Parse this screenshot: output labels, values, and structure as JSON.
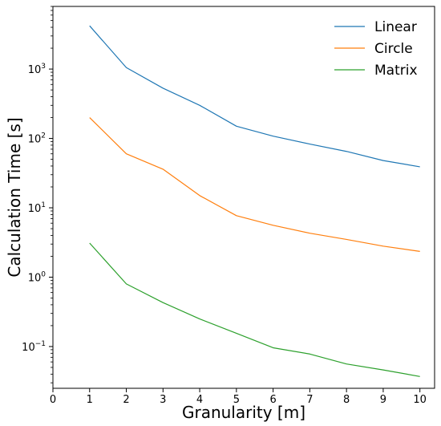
{
  "chart_data": {
    "type": "line",
    "xlabel": "Granularity [m]",
    "ylabel": "Calculation Time [s]",
    "y_scale": "log",
    "xlim": [
      0,
      10.4
    ],
    "ylim": [
      0.025,
      8000
    ],
    "x_ticks": [
      "0",
      "1",
      "2",
      "3",
      "4",
      "5",
      "6",
      "7",
      "8",
      "9",
      "10"
    ],
    "y_ticks": [
      {
        "value": 0.1,
        "base": "10",
        "exp": "−1"
      },
      {
        "value": 1,
        "base": "10",
        "exp": "0"
      },
      {
        "value": 10,
        "base": "10",
        "exp": "1"
      },
      {
        "value": 100,
        "base": "10",
        "exp": "2"
      },
      {
        "value": 1000,
        "base": "10",
        "exp": "3"
      }
    ],
    "grid": false,
    "legend_position": "top-right",
    "x": [
      1,
      2,
      3,
      4,
      5,
      6,
      7,
      8,
      9,
      10
    ],
    "series": [
      {
        "name": "Linear",
        "color": "#1f77b4",
        "values": [
          4200,
          1050,
          530,
          300,
          150,
          108,
          83,
          65,
          48,
          39
        ]
      },
      {
        "name": "Circle",
        "color": "#ff7f0e",
        "values": [
          200,
          60,
          36,
          15,
          7.7,
          5.6,
          4.3,
          3.5,
          2.8,
          2.35
        ]
      },
      {
        "name": "Matrix",
        "color": "#2ca02c",
        "values": [
          3.1,
          0.8,
          0.43,
          0.25,
          0.155,
          0.096,
          0.078,
          0.056,
          0.046,
          0.037
        ]
      }
    ]
  }
}
